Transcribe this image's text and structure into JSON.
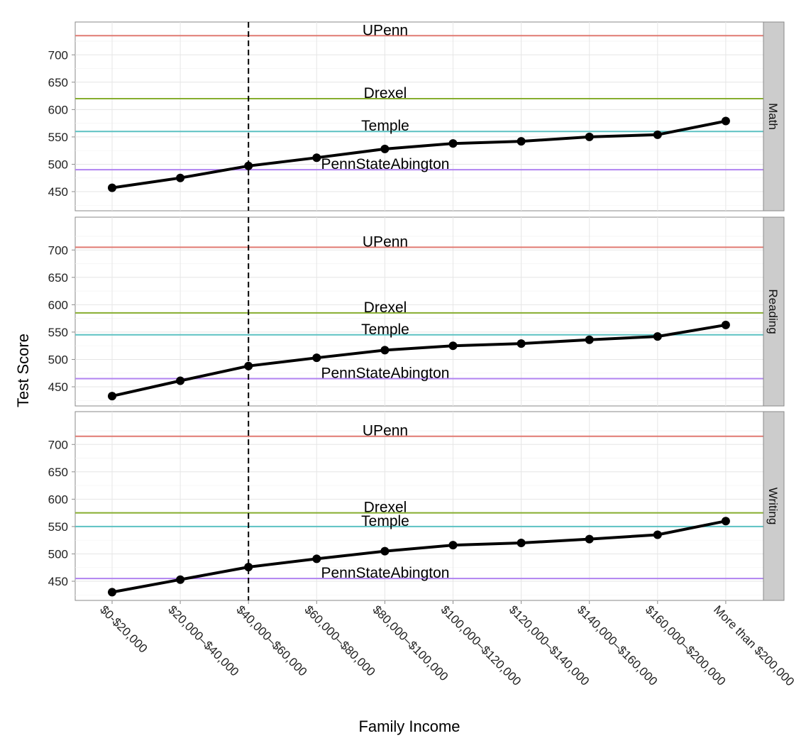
{
  "chart_data": {
    "type": "line",
    "xlabel": "Family Income",
    "ylabel": "Test Score",
    "categories": [
      "$0-$20,000",
      "$20,000–$40,000",
      "$40,000–$60,000",
      "$60,000–$80,000",
      "$80,000–$100,000",
      "$100,000–$120,000",
      "$120,000–$140,000",
      "$140,000–$160,000",
      "$160,000–$200,000",
      "More than $200,000"
    ],
    "ylim": [
      415,
      760
    ],
    "yticks": [
      450,
      500,
      550,
      600,
      650,
      700
    ],
    "vline_category": "$40,000–$60,000",
    "grid": true,
    "colors": {
      "UPenn": "#e07a72",
      "Drexel": "#86ad2e",
      "Temple": "#5cc1c2",
      "PennStateAbington": "#b183f0",
      "series": "#000000"
    },
    "panels": [
      {
        "strip": "Math",
        "values": [
          457,
          475,
          497,
          512,
          528,
          538,
          542,
          550,
          554,
          579
        ],
        "reference_lines": [
          {
            "name": "UPenn",
            "value": 735
          },
          {
            "name": "Drexel",
            "value": 620
          },
          {
            "name": "Temple",
            "value": 560
          },
          {
            "name": "PennStateAbington",
            "value": 490
          }
        ]
      },
      {
        "strip": "Reading",
        "values": [
          433,
          461,
          488,
          503,
          517,
          525,
          529,
          536,
          542,
          563
        ],
        "reference_lines": [
          {
            "name": "UPenn",
            "value": 705
          },
          {
            "name": "Drexel",
            "value": 585
          },
          {
            "name": "Temple",
            "value": 545
          },
          {
            "name": "PennStateAbington",
            "value": 465
          }
        ]
      },
      {
        "strip": "Writing",
        "values": [
          430,
          453,
          476,
          491,
          505,
          516,
          520,
          527,
          535,
          560
        ],
        "reference_lines": [
          {
            "name": "UPenn",
            "value": 715
          },
          {
            "name": "Drexel",
            "value": 575
          },
          {
            "name": "Temple",
            "value": 550
          },
          {
            "name": "PennStateAbington",
            "value": 455
          }
        ]
      }
    ]
  }
}
